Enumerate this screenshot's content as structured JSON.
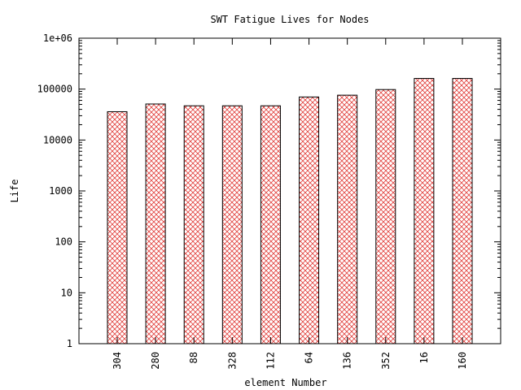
{
  "chart_data": {
    "type": "bar",
    "title": "SWT Fatigue Lives for Nodes",
    "xlabel": "element Number",
    "ylabel": "Life",
    "yscale": "log",
    "ylim": [
      1,
      1000000
    ],
    "yticks": [
      1,
      10,
      100,
      1000,
      10000,
      100000,
      1000000
    ],
    "ytick_labels": [
      "1",
      "10",
      "100",
      "1000",
      "10000",
      "100000",
      "1e+06"
    ],
    "categories": [
      "304",
      "280",
      "88",
      "328",
      "112",
      "64",
      "136",
      "352",
      "16",
      "160"
    ],
    "values": [
      36000,
      51000,
      47000,
      47000,
      47000,
      70000,
      76000,
      98000,
      162000,
      162000
    ],
    "grid": false,
    "bar_fill": "crosshatch",
    "colors": {
      "bar_hatch": "#e0403c",
      "bar_edge": "#000000",
      "frame": "#000000"
    }
  }
}
